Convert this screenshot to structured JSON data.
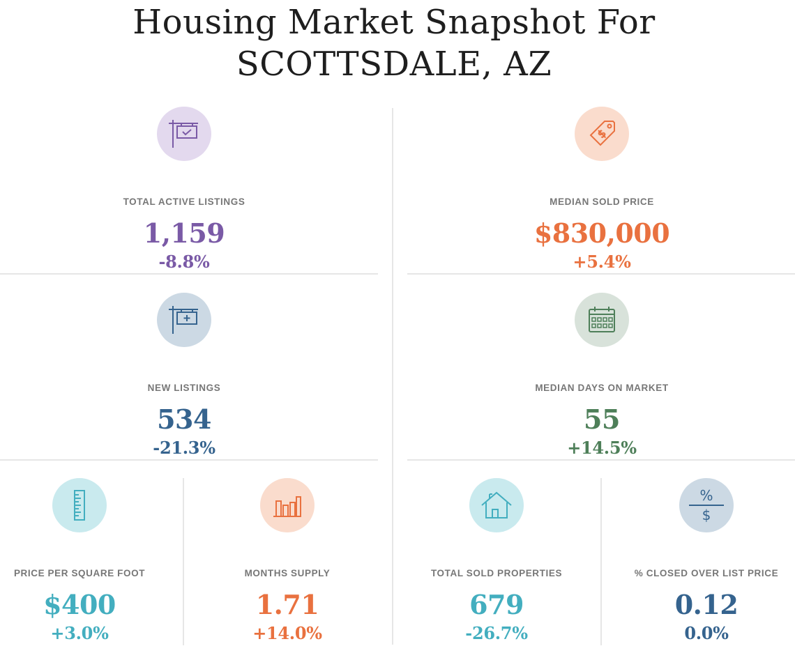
{
  "title": {
    "line1": "Housing Market Snapshot For",
    "line2": "SCOTTSDALE, AZ"
  },
  "colors": {
    "purple": "#7a5aa6",
    "orange": "#e9713f",
    "slate_blue": "#35638e",
    "green": "#4e7f59",
    "teal": "#43aebf"
  },
  "metrics": {
    "total_active_listings": {
      "label": "TOTAL ACTIVE LISTINGS",
      "value": "1,159",
      "change": "-8.8%",
      "icon": "for-sale-sign-check-icon"
    },
    "median_sold_price": {
      "label": "MEDIAN SOLD PRICE",
      "value": "$830,000",
      "change": "+5.4%",
      "icon": "price-tag-icon"
    },
    "new_listings": {
      "label": "NEW LISTINGS",
      "value": "534",
      "change": "-21.3%",
      "icon": "for-sale-sign-plus-icon"
    },
    "median_days_on_market": {
      "label": "MEDIAN DAYS ON MARKET",
      "value": "55",
      "change": "+14.5%",
      "icon": "calendar-icon"
    },
    "price_per_square_foot": {
      "label": "PRICE PER SQUARE FOOT",
      "value": "$400",
      "change": "+3.0%",
      "icon": "ruler-icon"
    },
    "months_supply": {
      "label": "MONTHS SUPPLY",
      "value": "1.71",
      "change": "+14.0%",
      "icon": "bar-chart-icon"
    },
    "total_sold_properties": {
      "label": "TOTAL SOLD PROPERTIES",
      "value": "679",
      "change": "-26.7%",
      "icon": "house-icon"
    },
    "pct_closed_over_list": {
      "label": "% CLOSED OVER LIST PRICE",
      "value": "0.12",
      "change": "0.0%",
      "icon": "percent-over-dollar-icon",
      "icon_top": "%",
      "icon_bottom": "$"
    }
  }
}
